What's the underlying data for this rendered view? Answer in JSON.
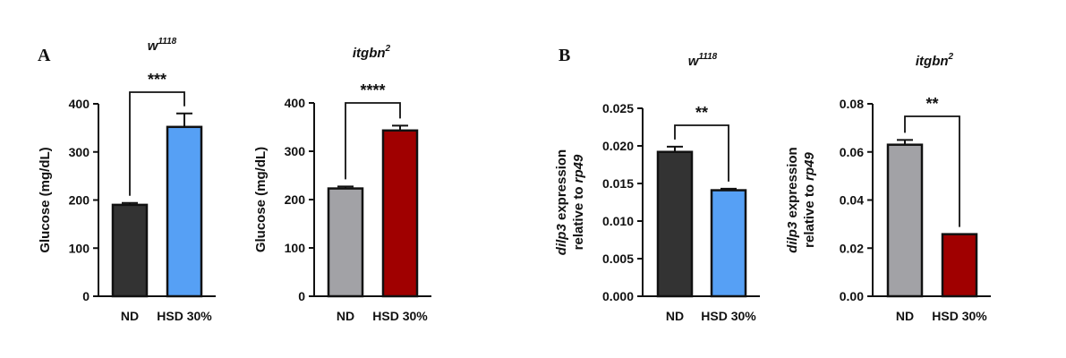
{
  "panels": [
    {
      "letter": "A"
    },
    {
      "letter": "B"
    }
  ],
  "chart_data": [
    {
      "type": "bar",
      "panel": "A",
      "title": "w",
      "title_sup": "1118",
      "ylabel": "Glucose (mg/dL)",
      "ylabel_prefix": "",
      "ylabel_line2": "",
      "categories": [
        "ND",
        "HSD 30%"
      ],
      "values": [
        190,
        352
      ],
      "errors": [
        4,
        28
      ],
      "colors": [
        "#333333",
        "#56a0f5"
      ],
      "ylim": [
        0,
        400
      ],
      "yticks": [
        "0",
        "100",
        "200",
        "300",
        "400"
      ],
      "significance": "***"
    },
    {
      "type": "bar",
      "panel": "A",
      "title": "itgbn",
      "title_sup": "2",
      "ylabel": "Glucose (mg/dL)",
      "ylabel_prefix": "",
      "ylabel_line2": "",
      "categories": [
        "ND",
        "HSD 30%"
      ],
      "values": [
        223,
        343
      ],
      "errors": [
        4,
        10
      ],
      "colors": [
        "#a2a2a6",
        "#a00000"
      ],
      "ylim": [
        0,
        400
      ],
      "yticks": [
        "0",
        "100",
        "200",
        "300",
        "400"
      ],
      "significance": "****"
    },
    {
      "type": "bar",
      "panel": "B",
      "title": "w",
      "title_sup": "1118",
      "ylabel": " expression",
      "ylabel_prefix": "dilp3",
      "ylabel_line2": "relative to ",
      "ylabel_line2_italic": "rp49",
      "categories": [
        "ND",
        "HSD 30%"
      ],
      "values": [
        0.0192,
        0.0141
      ],
      "errors": [
        0.0007,
        0.0002
      ],
      "colors": [
        "#333333",
        "#56a0f5"
      ],
      "ylim": [
        0,
        0.025
      ],
      "yticks": [
        "0.000",
        "0.005",
        "0.010",
        "0.015",
        "0.020",
        "0.025"
      ],
      "significance": "**"
    },
    {
      "type": "bar",
      "panel": "B",
      "title": "itgbn",
      "title_sup": "2",
      "ylabel": " expression",
      "ylabel_prefix": "dilp3",
      "ylabel_line2": "relative to ",
      "ylabel_line2_italic": "rp49",
      "categories": [
        "ND",
        "HSD 30%"
      ],
      "values": [
        0.063,
        0.0258
      ],
      "errors": [
        0.002,
        0.0
      ],
      "colors": [
        "#a2a2a6",
        "#a00000"
      ],
      "ylim": [
        0,
        0.08
      ],
      "yticks": [
        "0.00",
        "0.02",
        "0.04",
        "0.06",
        "0.08"
      ],
      "significance": "**"
    }
  ]
}
